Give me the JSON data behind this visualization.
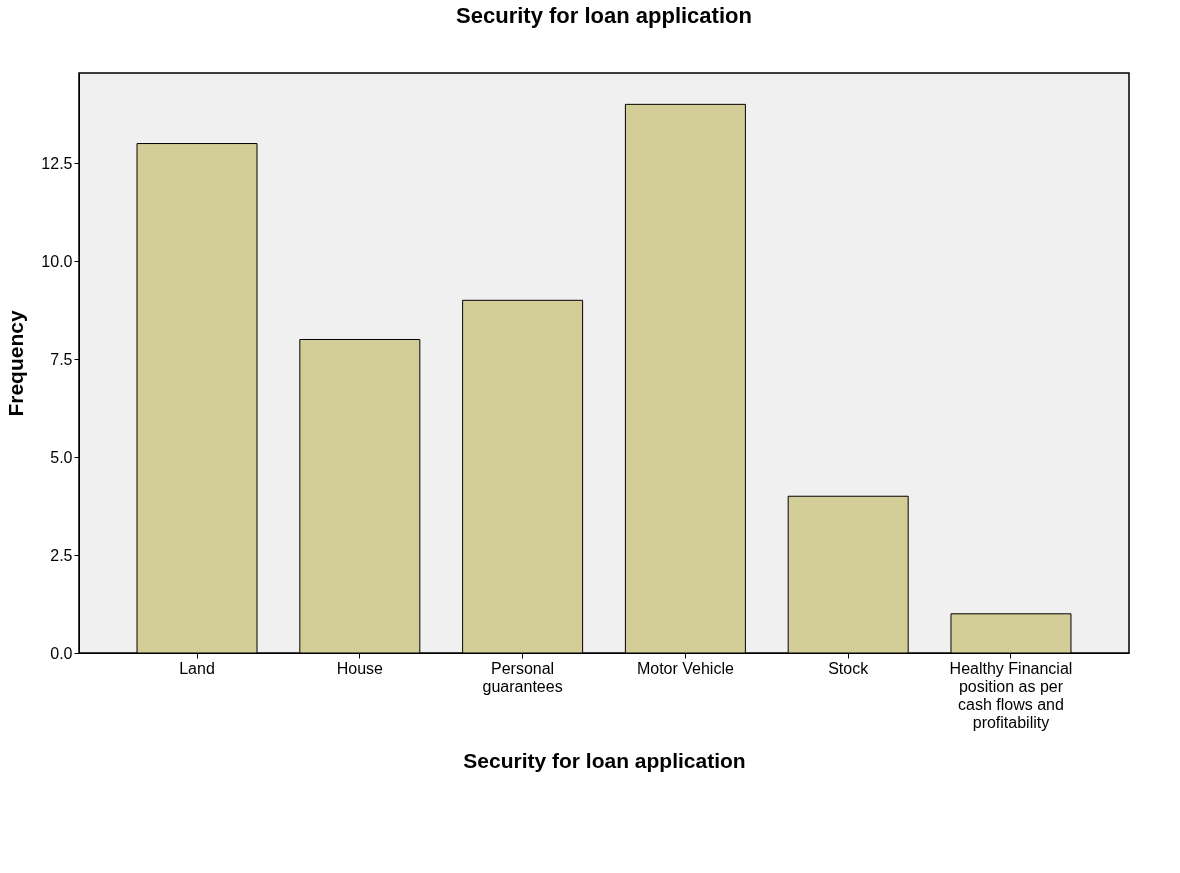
{
  "chart_data": {
    "type": "bar",
    "title": "Security for loan application",
    "xlabel": "Security for loan application",
    "ylabel": "Frequency",
    "categories": [
      "Land",
      "House",
      "Personal guarantees",
      "Motor Vehicle",
      "Stock",
      "Healthy Financial position as per cash flows and profitability"
    ],
    "values": [
      13,
      8,
      9,
      14,
      4,
      1
    ],
    "color": "#d3ce97",
    "ylim": [
      0,
      14.8
    ],
    "yticks": [
      {
        "value": 0,
        "label": "0.0"
      },
      {
        "value": 2.5,
        "label": "2.5"
      },
      {
        "value": 5,
        "label": "5.0"
      },
      {
        "value": 7.5,
        "label": "7.5"
      },
      {
        "value": 10,
        "label": "10.0"
      },
      {
        "value": 12.5,
        "label": "12.5"
      }
    ],
    "grid": false
  }
}
